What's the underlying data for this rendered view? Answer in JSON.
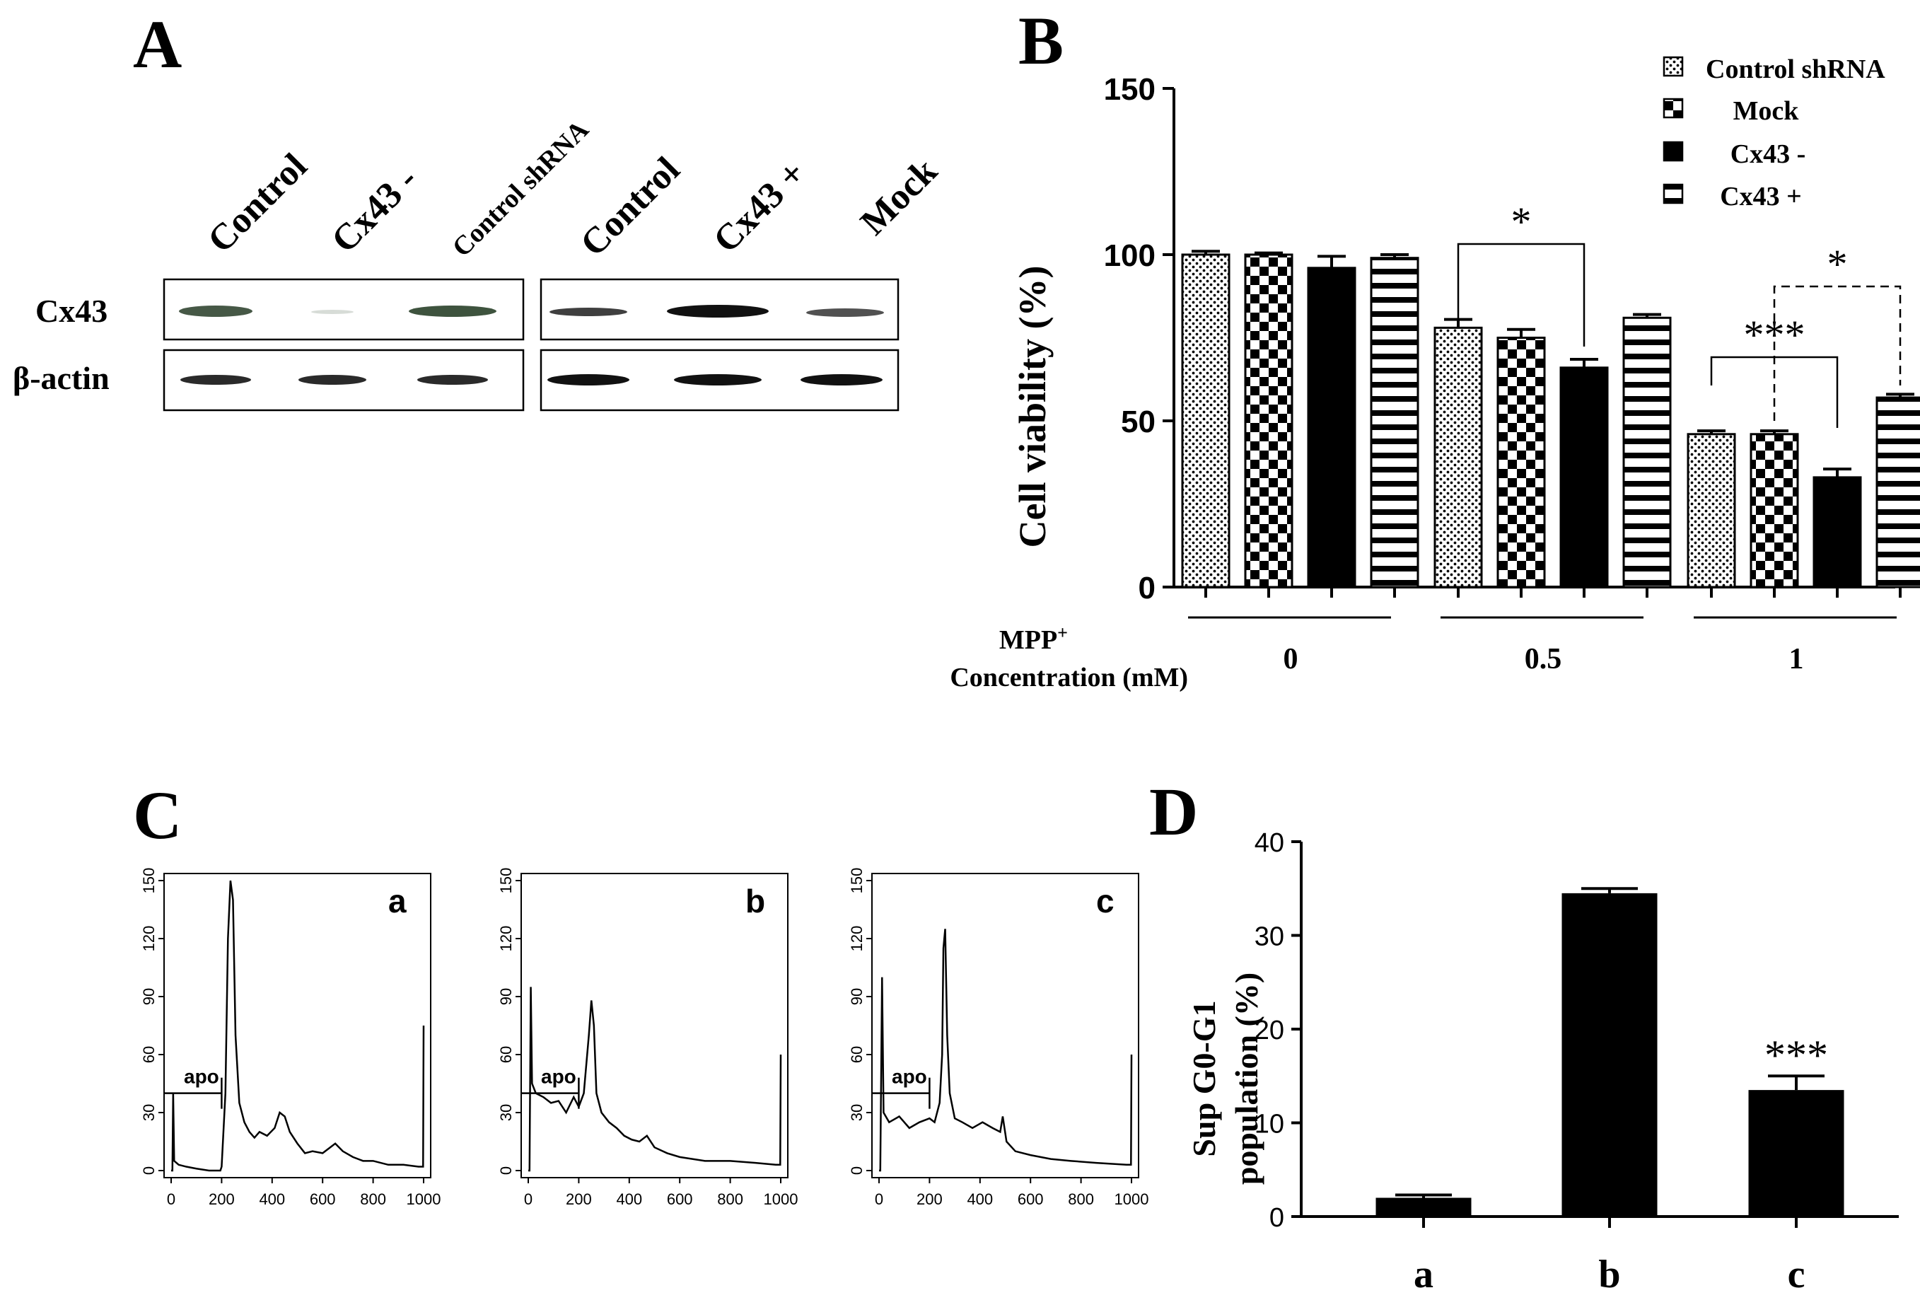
{
  "panels": {
    "A": {
      "label": "A",
      "lane_labels": [
        "Control",
        "Cx43 -",
        "Control shRNA",
        "Control",
        "Cx43 +",
        "Mock"
      ],
      "row_labels": [
        "Cx43",
        "β-actin"
      ]
    },
    "B": {
      "label": "B"
    },
    "C": {
      "label": "C",
      "subpanels": [
        {
          "label": "a",
          "gate_label": "apo"
        },
        {
          "label": "b",
          "gate_label": "apo"
        },
        {
          "label": "c",
          "gate_label": "apo"
        }
      ],
      "x_ticks": [
        "0",
        "200",
        "400",
        "600",
        "800",
        "1000"
      ],
      "y_ticks": [
        "0",
        "30",
        "60",
        "90",
        "120",
        "150"
      ]
    },
    "D": {
      "label": "D"
    }
  },
  "chart_data": [
    {
      "id": "B",
      "type": "bar",
      "title": "",
      "ylabel": "Cell viability (%)",
      "xlabel_line1": "MPP",
      "xlabel_sup": "+",
      "xlabel_line2": "Concentration (mM)",
      "ylim": [
        0,
        150
      ],
      "y_ticks": [
        "0",
        "50",
        "100",
        "150"
      ],
      "groups": [
        "0",
        "0.5",
        "1"
      ],
      "legend_position": "top-right",
      "series": [
        {
          "name": "Control shRNA",
          "pattern": "dots",
          "values": [
            100,
            78,
            46
          ],
          "errors": [
            1,
            2.5,
            1
          ]
        },
        {
          "name": "Mock",
          "pattern": "checker",
          "values": [
            100,
            75,
            46
          ],
          "errors": [
            0.5,
            2.5,
            1
          ]
        },
        {
          "name": "Cx43 -",
          "pattern": "solid",
          "values": [
            96,
            66,
            33
          ],
          "errors": [
            3.5,
            2.5,
            2.5
          ]
        },
        {
          "name": "Cx43 +",
          "pattern": "hstripes",
          "values": [
            99,
            81,
            57
          ],
          "errors": [
            1,
            1,
            1
          ]
        }
      ],
      "annotations": [
        {
          "text": "*",
          "group": "0.5",
          "from_series": "Control shRNA",
          "to_series": "Cx43 -",
          "style": "solid"
        },
        {
          "text": "***",
          "group": "1",
          "from_series": "Control shRNA",
          "to_series": "Cx43 -",
          "style": "solid"
        },
        {
          "text": "*",
          "group": "1",
          "from_series": "Mock",
          "to_series": "Cx43 +",
          "style": "dashed"
        }
      ]
    },
    {
      "id": "D",
      "type": "bar",
      "title": "",
      "ylabel_line1": "Sup G0-G1",
      "ylabel_line2": "population (%)",
      "ylim": [
        0,
        40
      ],
      "y_ticks": [
        "0",
        "10",
        "20",
        "30",
        "40"
      ],
      "categories": [
        "a",
        "b",
        "c"
      ],
      "values": [
        2,
        34.5,
        13.5
      ],
      "errors": [
        0.3,
        0.5,
        1.5
      ],
      "annotations": [
        {
          "text": "***",
          "category": "c"
        }
      ]
    }
  ]
}
